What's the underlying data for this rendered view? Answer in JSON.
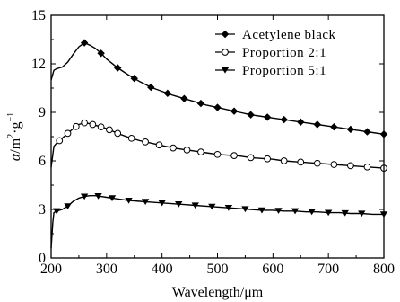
{
  "chart_data": {
    "type": "line",
    "title": "",
    "xlabel": "Wavelength/μm",
    "ylabel_parts": [
      "α",
      "/m",
      "2",
      "·g",
      "−1"
    ],
    "xlim": [
      200,
      800
    ],
    "ylim": [
      0,
      15
    ],
    "x_ticks": [
      200,
      300,
      400,
      500,
      600,
      700,
      800
    ],
    "y_ticks": [
      0,
      3,
      6,
      9,
      12,
      15
    ],
    "grid": false,
    "legend_position": "top-right",
    "series": [
      {
        "name": "Acetylene black",
        "marker": "diamond",
        "x": [
          200,
          205,
          210,
          215,
          220,
          230,
          240,
          250,
          260,
          270,
          280,
          290,
          300,
          320,
          340,
          360,
          380,
          400,
          420,
          440,
          460,
          480,
          500,
          520,
          540,
          560,
          580,
          600,
          620,
          640,
          660,
          680,
          700,
          720,
          740,
          760,
          780,
          800
        ],
        "y": [
          11.0,
          11.6,
          11.7,
          11.75,
          11.8,
          12.1,
          12.6,
          13.05,
          13.3,
          13.15,
          12.95,
          12.65,
          12.3,
          11.75,
          11.3,
          10.9,
          10.55,
          10.3,
          10.05,
          9.85,
          9.65,
          9.45,
          9.3,
          9.15,
          9.0,
          8.85,
          8.75,
          8.65,
          8.55,
          8.45,
          8.35,
          8.25,
          8.15,
          8.05,
          7.95,
          7.85,
          7.75,
          7.65
        ],
        "marker_x": [
          260,
          290,
          320,
          350,
          380,
          410,
          440,
          470,
          500,
          530,
          560,
          590,
          620,
          650,
          680,
          710,
          740,
          770,
          800
        ]
      },
      {
        "name": "Proportion 2:1",
        "marker": "circle",
        "x": [
          200,
          205,
          210,
          220,
          230,
          240,
          250,
          260,
          270,
          280,
          290,
          300,
          310,
          320,
          340,
          360,
          380,
          400,
          420,
          440,
          460,
          480,
          500,
          520,
          540,
          560,
          580,
          600,
          620,
          640,
          660,
          680,
          700,
          720,
          740,
          760,
          780,
          800
        ],
        "y": [
          5.6,
          6.9,
          7.1,
          7.4,
          7.7,
          8.0,
          8.25,
          8.35,
          8.3,
          8.2,
          8.1,
          8.0,
          7.85,
          7.7,
          7.45,
          7.25,
          7.1,
          6.95,
          6.8,
          6.7,
          6.6,
          6.5,
          6.4,
          6.35,
          6.3,
          6.2,
          6.15,
          6.1,
          6.0,
          5.95,
          5.9,
          5.85,
          5.8,
          5.75,
          5.7,
          5.65,
          5.6,
          5.55
        ],
        "marker_x": [
          215,
          230,
          245,
          260,
          275,
          290,
          305,
          320,
          345,
          370,
          395,
          420,
          445,
          470,
          500,
          530,
          560,
          590,
          620,
          650,
          680,
          710,
          740,
          770,
          800
        ]
      },
      {
        "name": "Proportion 5:1",
        "marker": "triangle-down",
        "x": [
          200,
          203,
          205,
          210,
          220,
          230,
          240,
          250,
          260,
          270,
          280,
          290,
          300,
          320,
          340,
          360,
          380,
          400,
          420,
          440,
          460,
          480,
          500,
          520,
          540,
          560,
          580,
          600,
          620,
          640,
          660,
          680,
          700,
          720,
          740,
          760,
          780,
          800
        ],
        "y": [
          0.6,
          2.2,
          2.8,
          2.9,
          3.0,
          3.2,
          3.5,
          3.7,
          3.8,
          3.85,
          3.85,
          3.8,
          3.75,
          3.65,
          3.55,
          3.5,
          3.45,
          3.4,
          3.35,
          3.3,
          3.25,
          3.2,
          3.15,
          3.1,
          3.05,
          3.0,
          2.95,
          2.95,
          2.9,
          2.9,
          2.85,
          2.85,
          2.8,
          2.8,
          2.75,
          2.75,
          2.7,
          2.7
        ],
        "marker_x": [
          210,
          230,
          260,
          285,
          310,
          340,
          370,
          400,
          430,
          460,
          490,
          520,
          550,
          580,
          610,
          640,
          670,
          700,
          730,
          760,
          800
        ]
      }
    ]
  }
}
